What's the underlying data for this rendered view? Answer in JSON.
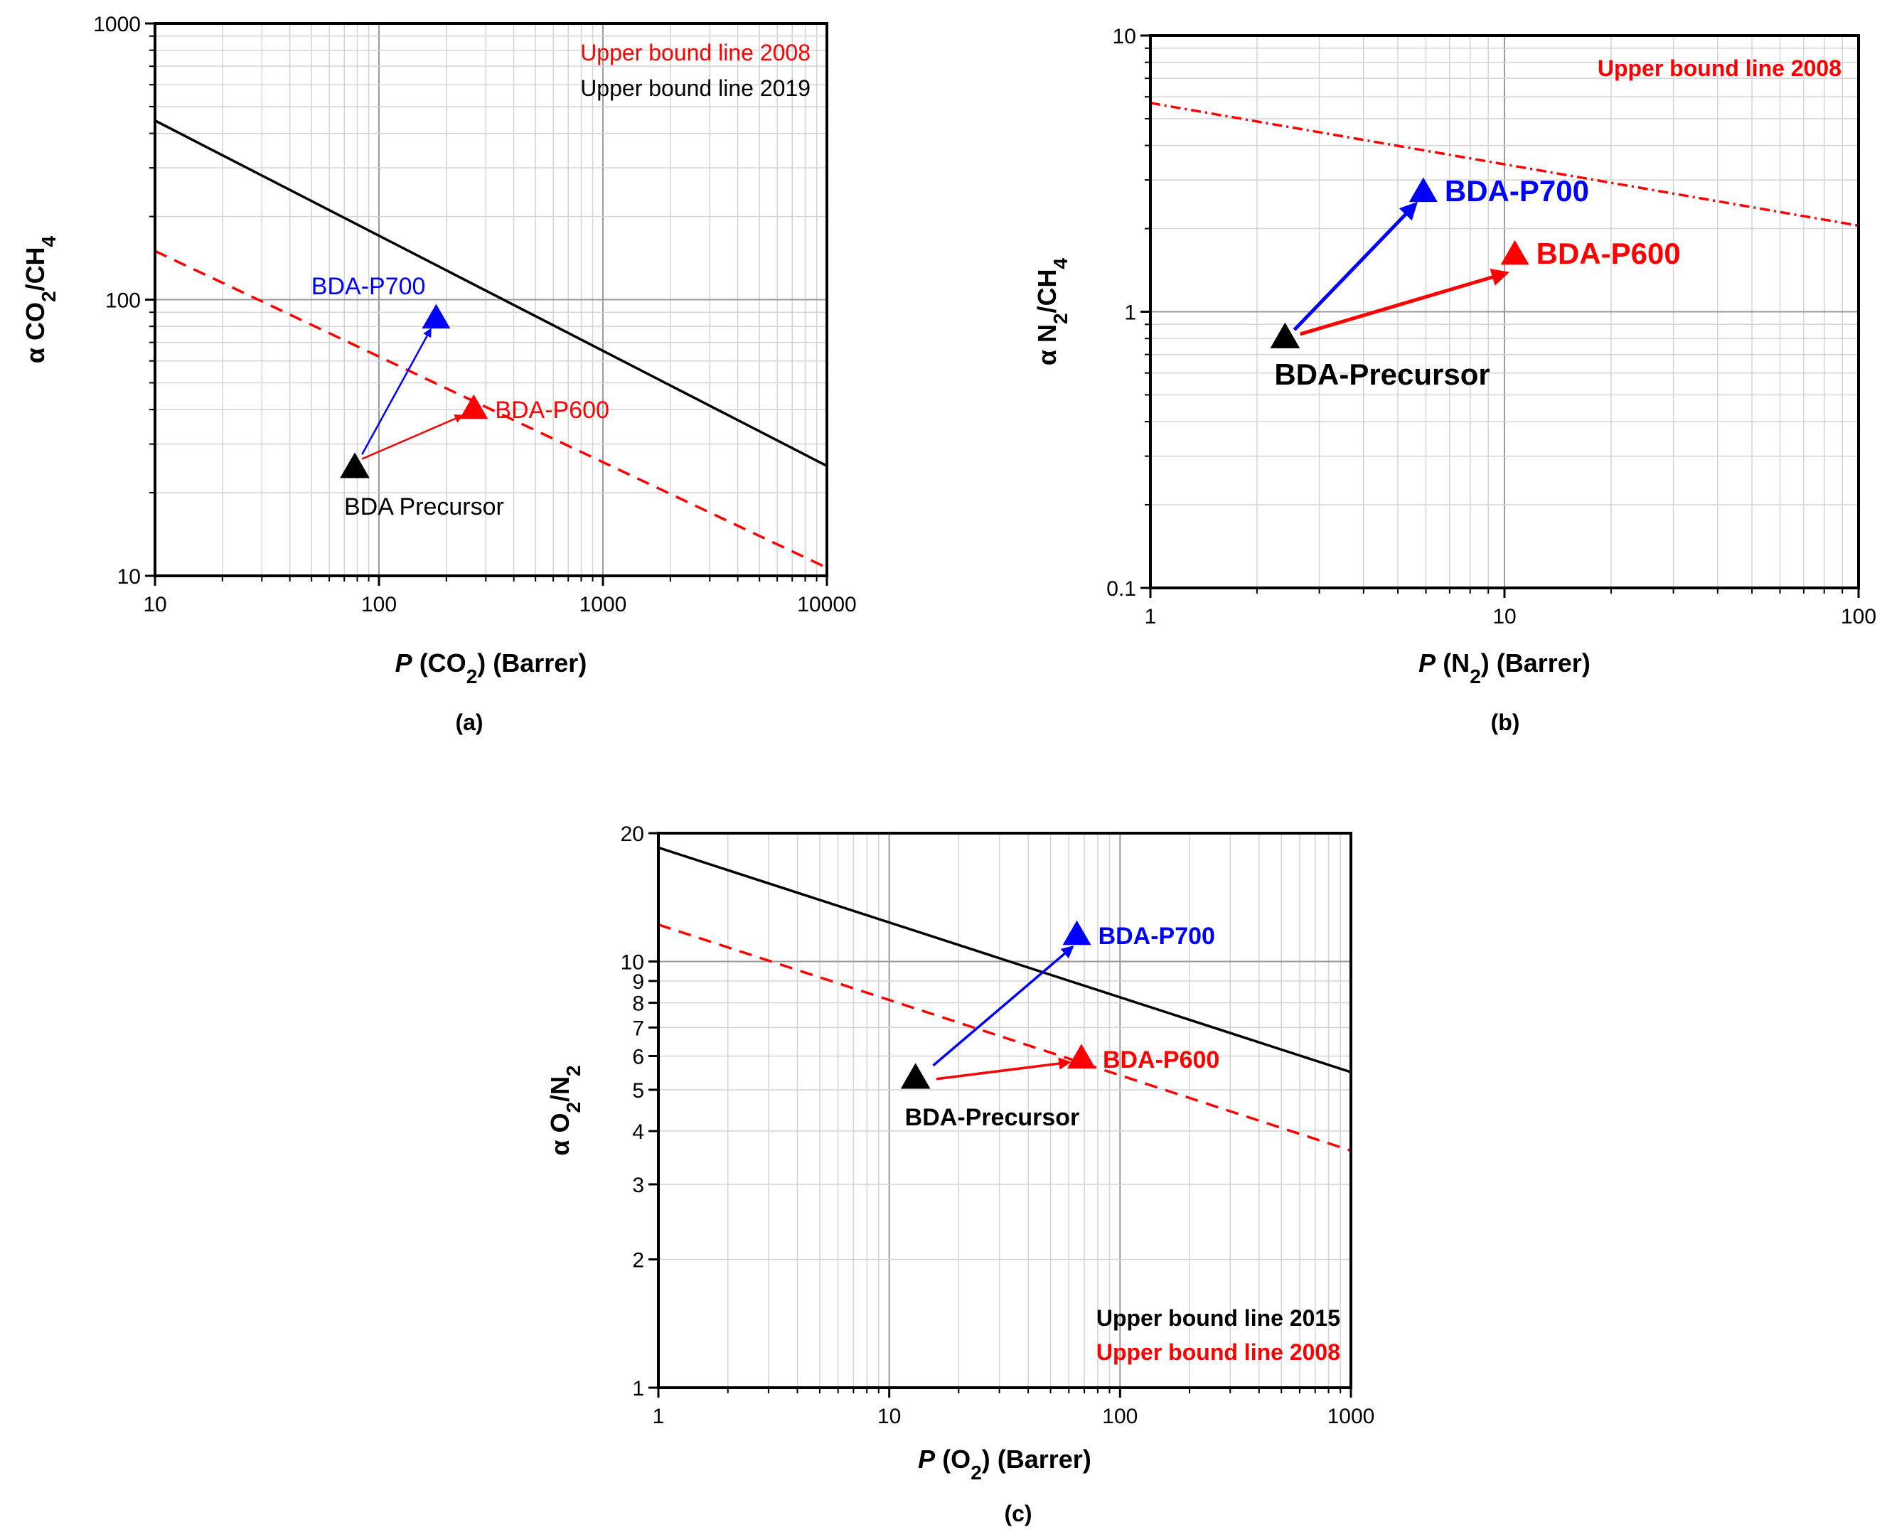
{
  "chart_data": [
    {
      "type": "scatter",
      "panel": "(a)",
      "xscale": "log",
      "yscale": "log",
      "xlim": [
        10,
        10000
      ],
      "ylim": [
        10,
        1000
      ],
      "xticks": [
        "10",
        "100",
        "1000",
        "10000"
      ],
      "yticks": [
        "10",
        "100",
        "1000"
      ],
      "xlabel": {
        "italic": "P",
        "text": " (CO",
        "sub": "2",
        "tail": ") (Barrer)"
      },
      "ylabel": {
        "text": "α CO",
        "sub": "2",
        "tail": "/CH",
        "sub2": "4"
      },
      "legend": [
        {
          "label": "Upper bound line 2008",
          "color": "#ff0000"
        },
        {
          "label": "Upper bound line 2019",
          "color": "#000000"
        }
      ],
      "lines": [
        {
          "name": "Upper bound line 2008",
          "color": "#ff0000",
          "style": "dashed",
          "x": [
            10,
            10000
          ],
          "y": [
            150,
            10.7
          ]
        },
        {
          "name": "Upper bound line 2019",
          "color": "#000000",
          "style": "solid",
          "x": [
            10,
            10000
          ],
          "y": [
            445,
            25
          ]
        }
      ],
      "points": [
        {
          "name": "BDA Precursor",
          "x": 78,
          "y": 24.5,
          "color": "#000000",
          "label": "BDA Precursor",
          "label_pos": "below"
        },
        {
          "name": "BDA-P700",
          "x": 180,
          "y": 85,
          "color": "#0000ff",
          "label": "BDA-P700",
          "label_pos": "above-left"
        },
        {
          "name": "BDA-P600",
          "x": 265,
          "y": 40,
          "color": "#ff0000",
          "label": "BDA-P600",
          "label_pos": "right"
        }
      ],
      "arrows": [
        {
          "from": [
            84,
            27.5
          ],
          "to": [
            170,
            78
          ],
          "color": "#0000ff"
        },
        {
          "from": [
            84,
            26.5
          ],
          "to": [
            235,
            38
          ],
          "color": "#ff0000"
        }
      ]
    },
    {
      "type": "scatter",
      "panel": "(b)",
      "xscale": "log",
      "yscale": "log",
      "xlim": [
        1,
        100
      ],
      "ylim": [
        0.1,
        10
      ],
      "xticks": [
        "1",
        "10",
        "100"
      ],
      "yticks": [
        "0.1",
        "1",
        "10"
      ],
      "xlabel": {
        "italic": "P",
        "text": " (N",
        "sub": "2",
        "tail": ") (Barrer)"
      },
      "ylabel": {
        "text": "α N",
        "sub": "2",
        "tail": "/CH",
        "sub2": "4"
      },
      "legend": [
        {
          "label": "Upper bound line 2008",
          "color": "#ff0000"
        }
      ],
      "lines": [
        {
          "name": "Upper bound line 2008",
          "color": "#ff0000",
          "style": "dashdot",
          "x": [
            1,
            100
          ],
          "y": [
            5.7,
            2.05
          ]
        }
      ],
      "points": [
        {
          "name": "BDA-Precursor",
          "x": 2.4,
          "y": 0.8,
          "color": "#000000",
          "label": "BDA-Precursor",
          "label_pos": "below"
        },
        {
          "name": "BDA-P700",
          "x": 5.9,
          "y": 2.7,
          "color": "#0000ff",
          "label": "BDA-P700",
          "label_pos": "right"
        },
        {
          "name": "BDA-P600",
          "x": 10.7,
          "y": 1.6,
          "color": "#ff0000",
          "label": "BDA-P600",
          "label_pos": "right"
        }
      ],
      "arrows": [
        {
          "from": [
            2.55,
            0.86
          ],
          "to": [
            5.6,
            2.45
          ],
          "color": "#0000ff"
        },
        {
          "from": [
            2.65,
            0.83
          ],
          "to": [
            10.1,
            1.38
          ],
          "color": "#ff0000"
        }
      ]
    },
    {
      "type": "scatter",
      "panel": "(c)",
      "xscale": "log",
      "yscale": "log",
      "xlim": [
        1,
        1000
      ],
      "ylim": [
        1,
        20
      ],
      "xticks": [
        "1",
        "10",
        "100",
        "1000"
      ],
      "yticks": [
        "1",
        "2",
        "3",
        "4",
        "5",
        "6",
        "7",
        "8",
        "9",
        "10",
        "20"
      ],
      "xlabel": {
        "italic": "P",
        "text": " (O",
        "sub": "2",
        "tail": ") (Barrer)"
      },
      "ylabel": {
        "text": "α O",
        "sub": "2",
        "tail": "/N",
        "sub2": "2"
      },
      "legend": [
        {
          "label": "Upper bound line 2015",
          "color": "#000000"
        },
        {
          "label": "Upper bound line 2008",
          "color": "#ff0000"
        }
      ],
      "lines": [
        {
          "name": "Upper bound line 2015",
          "color": "#000000",
          "style": "solid",
          "x": [
            1,
            1000
          ],
          "y": [
            18.5,
            5.5
          ]
        },
        {
          "name": "Upper bound line 2008",
          "color": "#ff0000",
          "style": "dashed",
          "x": [
            1,
            1000
          ],
          "y": [
            12.2,
            3.6
          ]
        }
      ],
      "points": [
        {
          "name": "BDA-Precursor",
          "x": 13,
          "y": 5.3,
          "color": "#000000",
          "label": "BDA-Precursor",
          "label_pos": "below"
        },
        {
          "name": "BDA-P700",
          "x": 65,
          "y": 11.5,
          "color": "#0000ff",
          "label": "BDA-P700",
          "label_pos": "right"
        },
        {
          "name": "BDA-P600",
          "x": 68,
          "y": 5.9,
          "color": "#ff0000",
          "label": "BDA-P600",
          "label_pos": "right"
        }
      ],
      "arrows": [
        {
          "from": [
            15.5,
            5.7
          ],
          "to": [
            62,
            10.8
          ],
          "color": "#0000ff"
        },
        {
          "from": [
            16,
            5.3
          ],
          "to": [
            60,
            5.8
          ],
          "color": "#ff0000"
        }
      ]
    }
  ]
}
